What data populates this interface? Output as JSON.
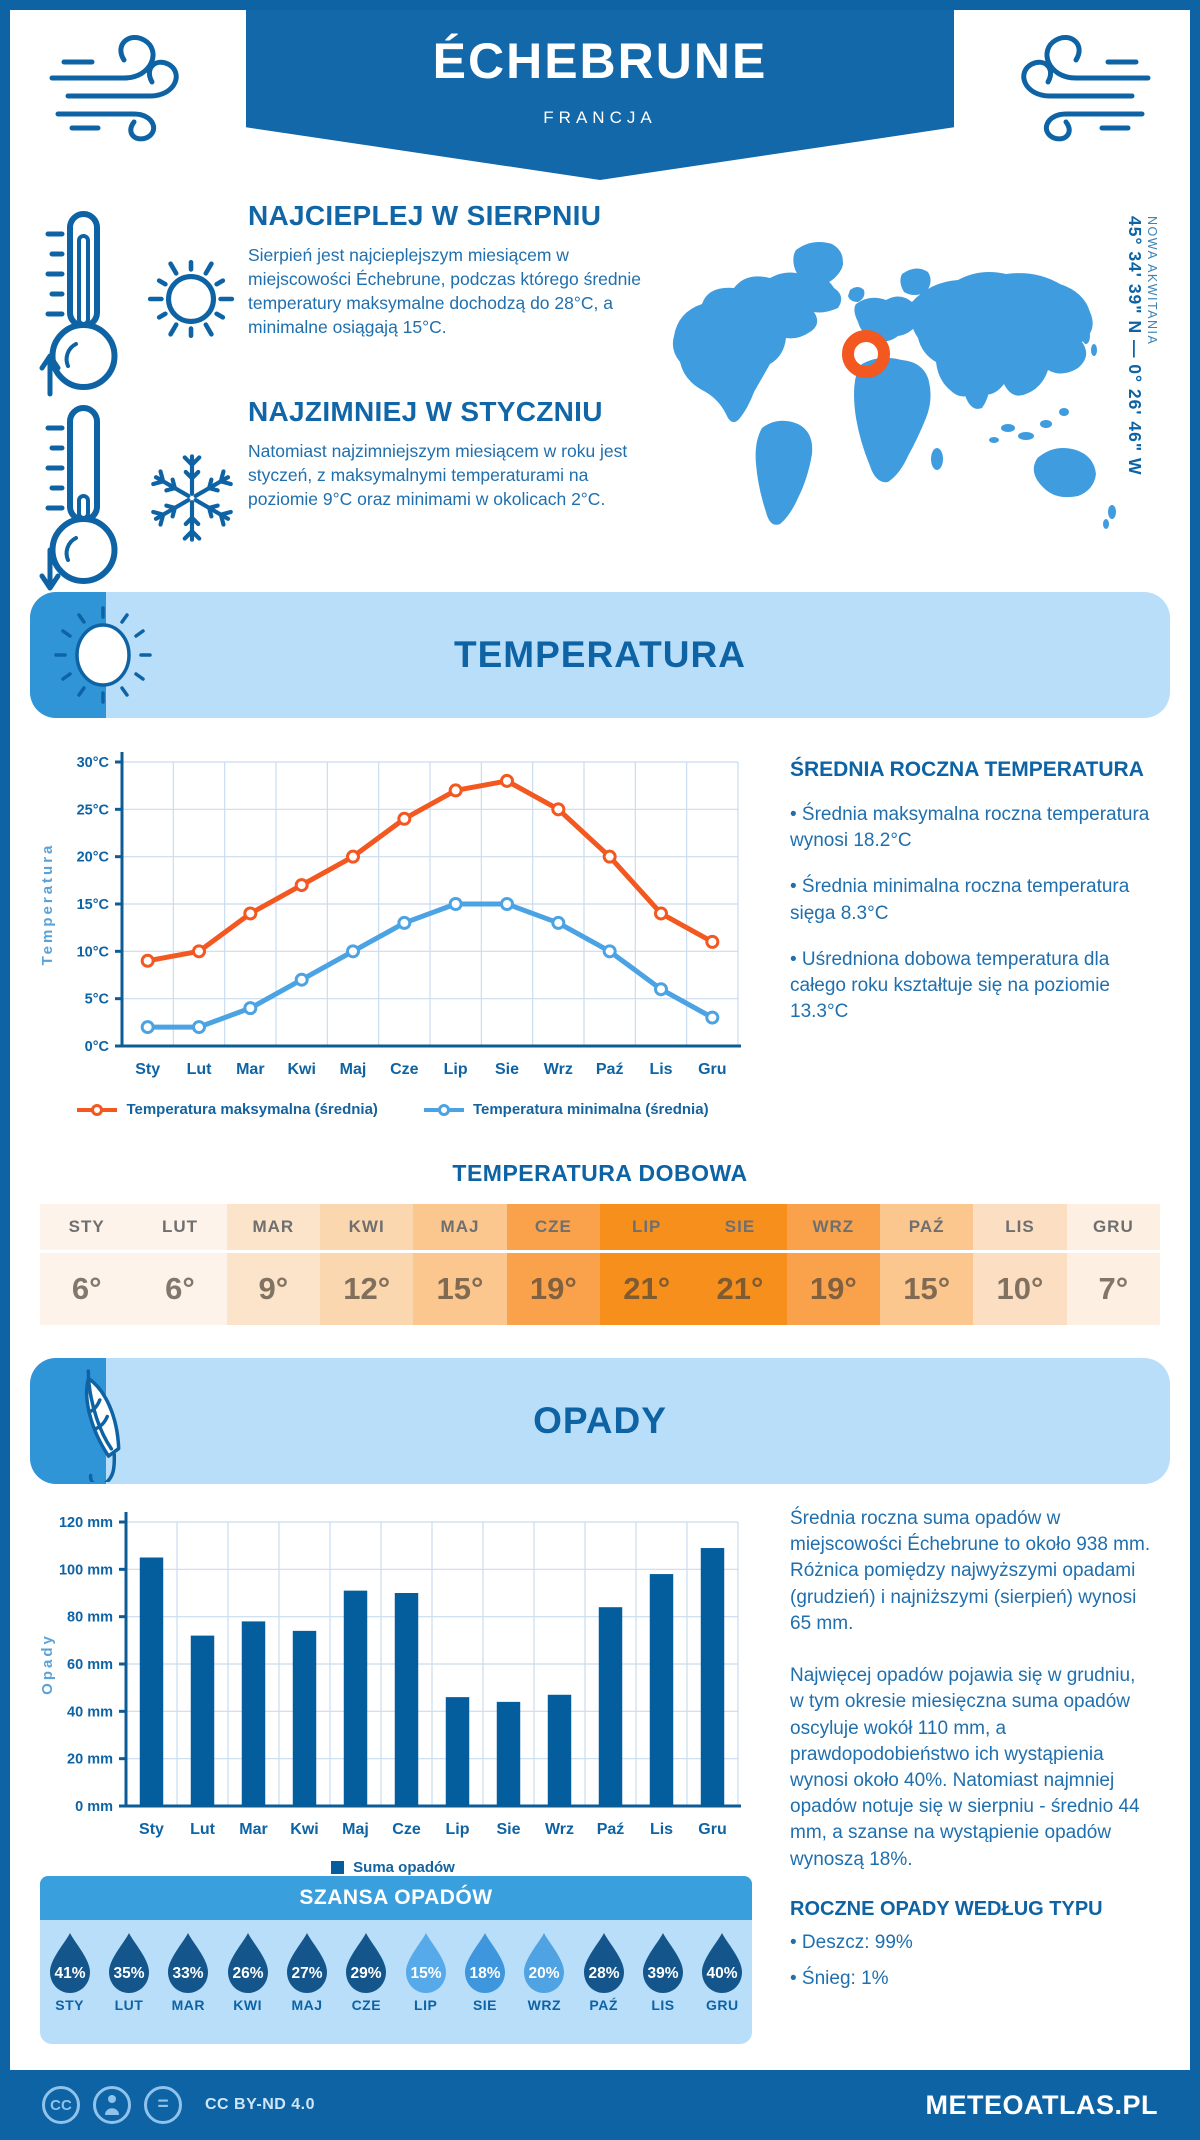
{
  "header": {
    "title": "ÉCHEBRUNE",
    "subtitle": "FRANCJA",
    "banner_color": "#1268a9"
  },
  "highlights": [
    {
      "heading": "NAJCIEPLEJ W SIERPNIU",
      "text": "Sierpień jest najcieplejszym miesiącem w miejscowości Échebrune, podczas którego średnie temperatury maksymalne dochodzą do 28°C, a minimalne osiągają 15°C.",
      "icons": [
        "thermometer-up-icon",
        "sun-icon"
      ]
    },
    {
      "heading": "NAJZIMNIEJ W STYCZNIU",
      "text": "Natomiast najzimniejszym miesiącem w roku jest styczeń, z maksymalnymi temperaturami na poziomie 9°C oraz minimami w okolicach 2°C.",
      "icons": [
        "thermometer-down-icon",
        "snowflake-icon"
      ]
    }
  ],
  "map": {
    "coordinates": "45° 34' 39\" N — 0° 26' 46\" W",
    "region": "NOWA AKWITANIA",
    "land_color": "#3f9cdf",
    "marker_color": "#f2581f"
  },
  "sections": {
    "temperature": "TEMPERATURA",
    "precipitation": "OPADY"
  },
  "annual_temperature": {
    "heading": "ŚREDNIA ROCZNA TEMPERATURA",
    "bullets": [
      "• Średnia maksymalna roczna temperatura wynosi 18.2°C",
      "• Średnia minimalna roczna temperatura sięga 8.3°C",
      "• Uśredniona dobowa temperatura dla całego roku kształtuje się na poziomie 13.3°C"
    ]
  },
  "daily_temperature": {
    "title": "TEMPERATURA DOBOWA",
    "months": [
      "STY",
      "LUT",
      "MAR",
      "KWI",
      "MAJ",
      "CZE",
      "LIP",
      "SIE",
      "WRZ",
      "PAŹ",
      "LIS",
      "GRU"
    ],
    "values": [
      "6°",
      "6°",
      "9°",
      "12°",
      "15°",
      "19°",
      "21°",
      "21°",
      "19°",
      "15°",
      "10°",
      "7°"
    ],
    "cell_colors": [
      "#fdf3ea",
      "#fdf3ea",
      "#fce4cb",
      "#fbd7b0",
      "#fbc78e",
      "#f9a24b",
      "#f78f1d",
      "#f78f1d",
      "#f9a24b",
      "#fbc78e",
      "#fcdfc3",
      "#fdefe1"
    ]
  },
  "precip_text": {
    "paragraphs": [
      "Średnia roczna suma opadów w miejscowości Échebrune to około 938 mm. Różnica pomiędzy najwyższymi opadami (grudzień) i najniższymi (sierpień) wynosi 65 mm.",
      "Najwięcej opadów pojawia się w grudniu, w tym okresie miesięczna suma opadów oscyluje wokół 110 mm, a prawdopodobieństwo ich wystąpienia wynosi około 40%. Natomiast najmniej opadów notuje się w sierpniu - średnio 44 mm, a szanse na wystąpienie opadów wynoszą 18%."
    ]
  },
  "precip_types": {
    "heading": "ROCZNE OPADY WEDŁUG TYPU",
    "bullets": [
      "• Deszcz: 99%",
      "• Śnieg: 1%"
    ]
  },
  "rain_chance": {
    "title": "SZANSA OPADÓW",
    "months": [
      "STY",
      "LUT",
      "MAR",
      "KWI",
      "MAJ",
      "CZE",
      "LIP",
      "SIE",
      "WRZ",
      "PAŹ",
      "LIS",
      "GRU"
    ],
    "values": [
      "41%",
      "35%",
      "33%",
      "26%",
      "27%",
      "29%",
      "15%",
      "18%",
      "20%",
      "28%",
      "39%",
      "40%"
    ],
    "drop_colors": [
      "#14568c",
      "#14568c",
      "#14568c",
      "#14568c",
      "#14568c",
      "#14568c",
      "#57aae9",
      "#3e97dc",
      "#4fa3e2",
      "#14568c",
      "#14568c",
      "#14568c"
    ]
  },
  "footer": {
    "license": "CC BY-ND 4.0",
    "brand": "METEOATLAS.PL",
    "cc_label": "CC",
    "nd_label": "=",
    "icons": [
      "cc-icon",
      "attribution-icon",
      "nd-icon"
    ]
  },
  "chart_data": [
    {
      "type": "line",
      "title": "TEMPERATURA",
      "x": [
        "Sty",
        "Lut",
        "Mar",
        "Kwi",
        "Maj",
        "Cze",
        "Lip",
        "Sie",
        "Wrz",
        "Paź",
        "Lis",
        "Gru"
      ],
      "series": [
        {
          "name": "Temperatura maksymalna (średnia)",
          "color": "#f2581f",
          "values": [
            9,
            10,
            14,
            17,
            20,
            24,
            27,
            28,
            25,
            20,
            14,
            11
          ]
        },
        {
          "name": "Temperatura minimalna (średnia)",
          "color": "#4ba3e3",
          "values": [
            2,
            2,
            4,
            7,
            10,
            13,
            15,
            15,
            13,
            10,
            6,
            3
          ]
        }
      ],
      "ylabel": "Temperatura",
      "ylim": [
        0,
        30
      ],
      "ytick_step": 5,
      "ytick_suffix": "°C",
      "grid": true,
      "legend_position": "bottom"
    },
    {
      "type": "bar",
      "title": "OPADY",
      "categories": [
        "Sty",
        "Lut",
        "Mar",
        "Kwi",
        "Maj",
        "Cze",
        "Lip",
        "Sie",
        "Wrz",
        "Paź",
        "Lis",
        "Gru"
      ],
      "values": [
        105,
        72,
        78,
        74,
        91,
        90,
        46,
        44,
        47,
        84,
        98,
        109
      ],
      "legend": "Suma opadów",
      "bar_color": "#045e9e",
      "ylabel": "Opady",
      "ylim": [
        0,
        120
      ],
      "ytick_step": 20,
      "ytick_suffix": " mm",
      "grid": true,
      "legend_position": "bottom"
    }
  ]
}
